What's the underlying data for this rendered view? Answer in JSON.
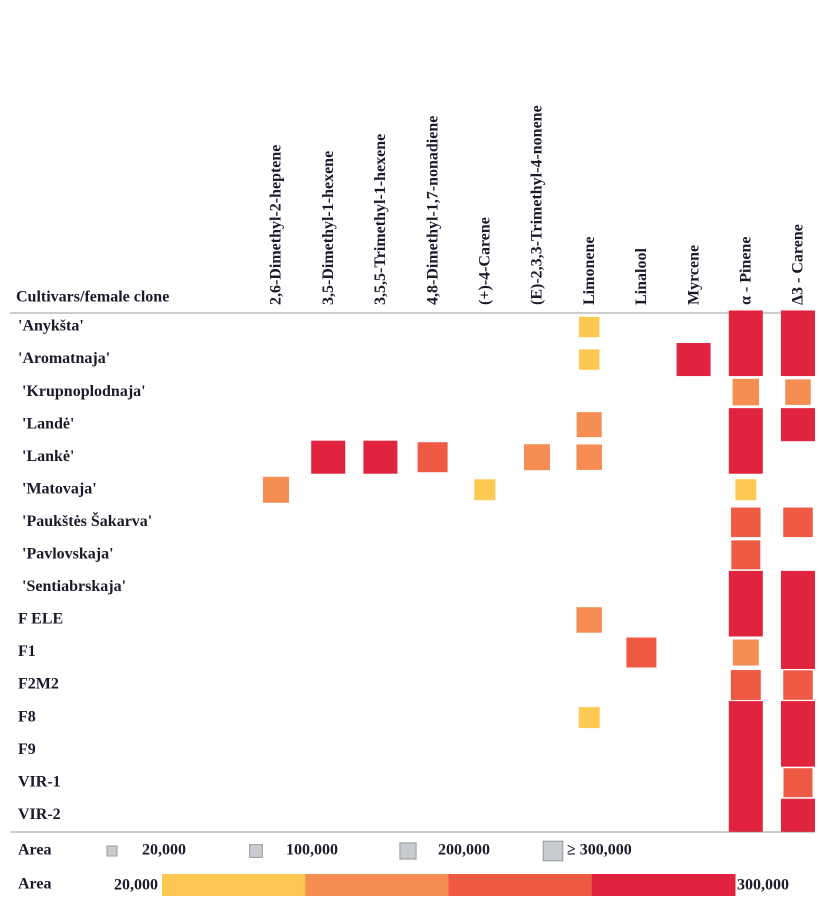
{
  "chart_data": {
    "type": "heatmap",
    "row_header": "Cultivars/female clone",
    "columns": [
      "2,6-Dimethyl-2-heptene",
      "3,5-Dimethyl-1-hexene",
      "3,5,5-Trimethyl-1-hexene",
      "4,8-Dimethyl-1,7-nonadiene",
      "(+)-4-Carene",
      "(E)-2,3,3-Trimethyl-4-nonene",
      "Limonene",
      "Linalool",
      "Myrcene",
      "α - Pinene",
      "Δ3 - Carene"
    ],
    "rows": [
      "'Anykšta'",
      "'Aromatnaja'",
      "'Krupnoplodnaja'",
      "'Landė'",
      "'Lankė'",
      "'Matovaja'",
      "'Paukštės Šakarva'",
      "'Pavlovskaja'",
      "'Sentiabrskaja'",
      "F ELE",
      "F1",
      "F2M2",
      "F8",
      "F9",
      "VIR-1",
      "VIR-2"
    ],
    "values": [
      [
        null,
        null,
        null,
        null,
        null,
        null,
        30000,
        null,
        null,
        400000,
        400000
      ],
      [
        null,
        null,
        null,
        null,
        null,
        null,
        30000,
        null,
        320000,
        400000,
        400000
      ],
      [
        null,
        null,
        null,
        null,
        null,
        null,
        null,
        null,
        null,
        150000,
        130000
      ],
      [
        null,
        null,
        null,
        null,
        null,
        null,
        120000,
        null,
        null,
        330000,
        330000
      ],
      [
        null,
        320000,
        320000,
        220000,
        null,
        140000,
        130000,
        null,
        null,
        330000,
        null
      ],
      [
        140000,
        null,
        null,
        null,
        40000,
        null,
        null,
        null,
        null,
        40000,
        null
      ],
      [
        null,
        null,
        null,
        null,
        null,
        null,
        null,
        null,
        null,
        210000,
        210000
      ],
      [
        null,
        null,
        null,
        null,
        null,
        null,
        null,
        null,
        null,
        200000,
        null
      ],
      [
        null,
        null,
        null,
        null,
        null,
        null,
        null,
        null,
        null,
        400000,
        400000
      ],
      [
        null,
        null,
        null,
        null,
        null,
        null,
        130000,
        null,
        null,
        400000,
        400000
      ],
      [
        null,
        null,
        null,
        null,
        null,
        null,
        null,
        220000,
        null,
        140000,
        330000
      ],
      [
        null,
        null,
        null,
        null,
        null,
        null,
        null,
        null,
        null,
        220000,
        210000
      ],
      [
        null,
        null,
        null,
        null,
        null,
        null,
        40000,
        null,
        null,
        400000,
        400000
      ],
      [
        null,
        null,
        null,
        null,
        null,
        null,
        null,
        null,
        null,
        400000,
        330000
      ],
      [
        null,
        null,
        null,
        null,
        null,
        null,
        null,
        null,
        null,
        330000,
        200000
      ],
      [
        null,
        null,
        null,
        null,
        null,
        null,
        null,
        null,
        null,
        330000,
        330000
      ]
    ],
    "colors": [
      "#fdc952",
      "#f68d52",
      "#ef5a45",
      "#e0243e"
    ],
    "size_legend": {
      "title": "Area",
      "color": "#c8ccd0",
      "ticks": [
        {
          "value": 20000,
          "label": "20,000"
        },
        {
          "value": 100000,
          "label": "100,000"
        },
        {
          "value": 200000,
          "label": "200,000"
        },
        {
          "value": 300000,
          "label": "≥ 300,000"
        }
      ]
    },
    "color_legend": {
      "title": "Area",
      "ticks": [
        {
          "value": 20000,
          "label": "20,000"
        },
        {
          "value": 300000,
          "label": "300,000"
        }
      ]
    }
  }
}
